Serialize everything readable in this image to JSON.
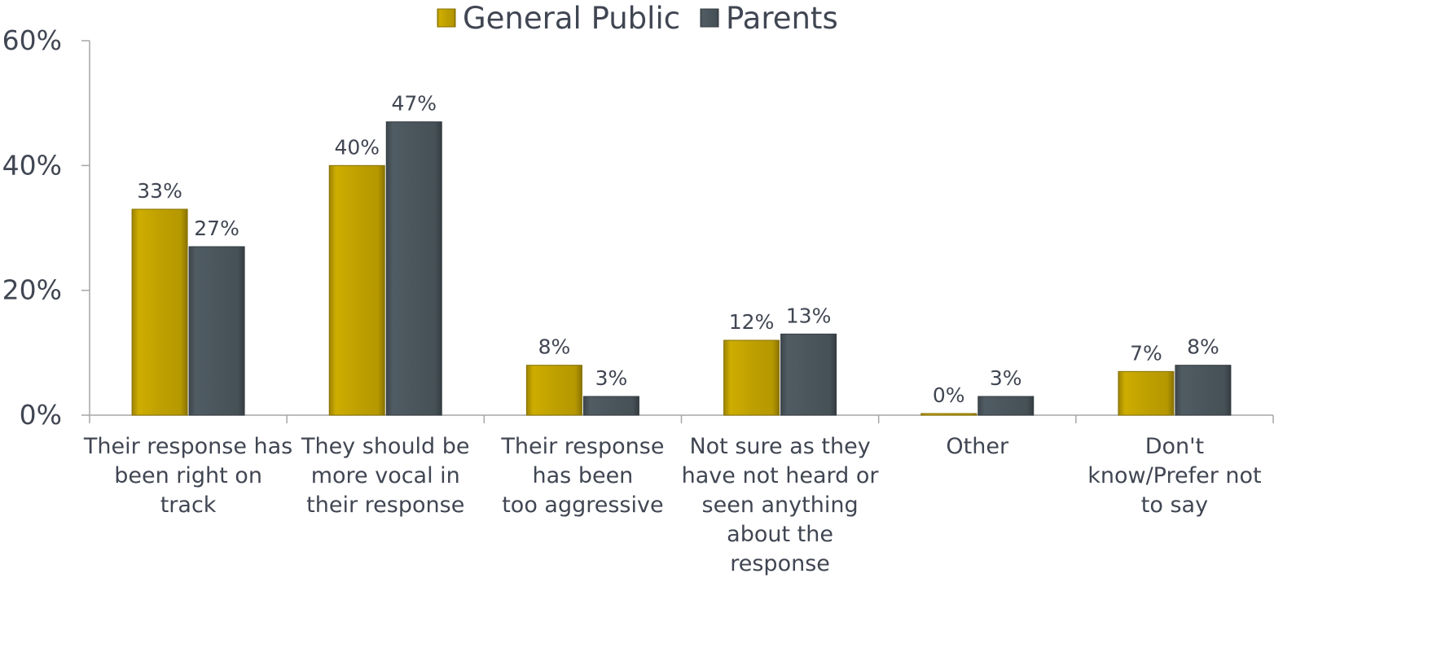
{
  "chart_data": {
    "type": "bar",
    "categories": [
      [
        "Their response has",
        "been right on",
        "track"
      ],
      [
        "They should be",
        "more vocal in",
        "their response"
      ],
      [
        "Their response",
        "has been",
        "too aggressive"
      ],
      [
        "Not sure as they",
        "have not heard or",
        "seen anything",
        "about the",
        "response"
      ],
      [
        "Other"
      ],
      [
        "Don't",
        "know/Prefer not",
        "to say"
      ]
    ],
    "series": [
      {
        "name": "General Public",
        "values": [
          33,
          40,
          8,
          12,
          0,
          7
        ],
        "labels": [
          "33%",
          "40%",
          "8%",
          "12%",
          "0%",
          "7%"
        ],
        "color": "#bfa000"
      },
      {
        "name": "Parents",
        "values": [
          27,
          47,
          3,
          13,
          3,
          8
        ],
        "labels": [
          "27%",
          "47%",
          "3%",
          "13%",
          "3%",
          "8%"
        ],
        "color": "#4a555c"
      }
    ],
    "yticks": [
      0,
      20,
      40,
      60
    ],
    "ytick_labels": [
      "0%",
      "20%",
      "40%",
      "60%"
    ],
    "ylim": [
      0,
      60
    ],
    "legend_position": "top-center",
    "grid": false
  }
}
